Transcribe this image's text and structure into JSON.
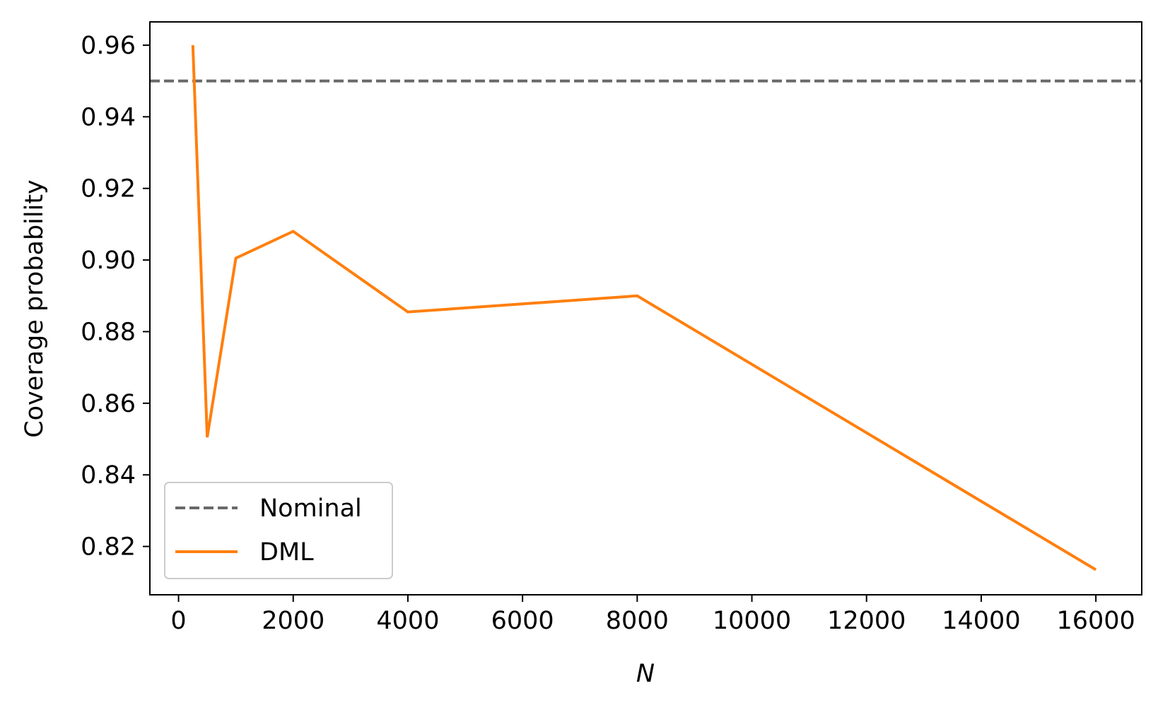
{
  "chart_data": {
    "type": "line",
    "xlabel": "N",
    "ylabel": "Coverage probability",
    "xlim": [
      -500,
      16800
    ],
    "ylim": [
      0.8065,
      0.9665
    ],
    "xticks": [
      0,
      2000,
      4000,
      6000,
      8000,
      10000,
      12000,
      14000,
      16000
    ],
    "xtick_labels": [
      "0",
      "2000",
      "4000",
      "6000",
      "8000",
      "10000",
      "12000",
      "14000",
      "16000"
    ],
    "yticks": [
      0.82,
      0.84,
      0.86,
      0.88,
      0.9,
      0.92,
      0.94,
      0.96
    ],
    "ytick_labels": [
      "0.82",
      "0.84",
      "0.86",
      "0.88",
      "0.90",
      "0.92",
      "0.94",
      "0.96"
    ],
    "grid": false,
    "legend_position": "lower-left",
    "reference_lines": [
      {
        "name": "Nominal",
        "y": 0.95,
        "style": "dashed",
        "color": "#696969"
      }
    ],
    "series": [
      {
        "name": "DML",
        "color": "#ff7f0e",
        "x": [
          250,
          500,
          1000,
          2000,
          4000,
          8000,
          16000
        ],
        "y": [
          0.96,
          0.8505,
          0.9005,
          0.908,
          0.8855,
          0.89,
          0.8135
        ]
      }
    ]
  }
}
